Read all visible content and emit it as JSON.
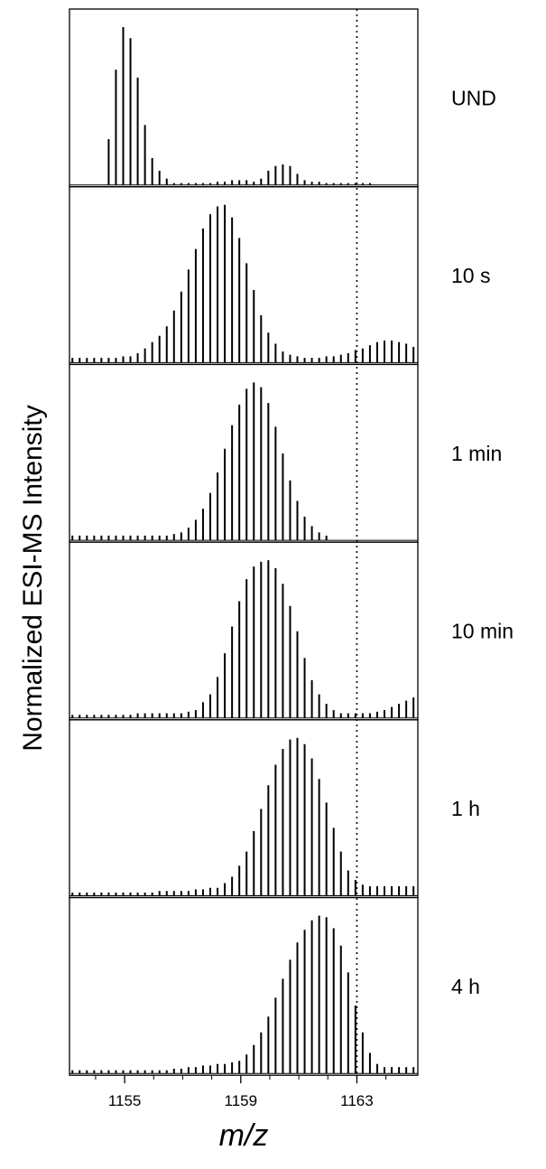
{
  "chart_data": {
    "type": "bar",
    "ylabel": "Normalized ESI-MS Intensity",
    "xlabel": "m/z",
    "xlim": [
      1153.1,
      1165.1
    ],
    "xticks": [
      1155,
      1159,
      1163
    ],
    "minor_xticks": [
      1154,
      1156,
      1157,
      1158,
      1160,
      1161,
      1162,
      1164
    ],
    "tick_labels": [
      "1155",
      "1159",
      "1163"
    ],
    "reference_line_x": 1163,
    "spacing": 0.25,
    "panels": [
      {
        "label": "UND",
        "start": 1154.45,
        "values": [
          0.29,
          0.73,
          1.0,
          0.93,
          0.68,
          0.38,
          0.17,
          0.09,
          0.04,
          0.0,
          0.0,
          0.0,
          0.0,
          0.01,
          0.01,
          0.02,
          0.02,
          0.03,
          0.03,
          0.03,
          0.02,
          0.04,
          0.09,
          0.12,
          0.13,
          0.12,
          0.07,
          0.03,
          0.02,
          0.02,
          0.01,
          0.01,
          0.01,
          0.0,
          0.0,
          0.0,
          0.0
        ]
      },
      {
        "label": "10 s",
        "start": 1153.2,
        "values": [
          0.03,
          0.03,
          0.03,
          0.03,
          0.03,
          0.03,
          0.03,
          0.04,
          0.04,
          0.06,
          0.09,
          0.13,
          0.17,
          0.23,
          0.33,
          0.45,
          0.59,
          0.72,
          0.85,
          0.94,
          0.99,
          1.0,
          0.92,
          0.79,
          0.63,
          0.46,
          0.3,
          0.19,
          0.12,
          0.07,
          0.05,
          0.04,
          0.03,
          0.03,
          0.03,
          0.04,
          0.04,
          0.05,
          0.06,
          0.08,
          0.09,
          0.11,
          0.13,
          0.14,
          0.14,
          0.13,
          0.12,
          0.1,
          0.08,
          0.06
        ]
      },
      {
        "label": "1 min",
        "start": 1153.2,
        "values": [
          0.03,
          0.03,
          0.03,
          0.03,
          0.03,
          0.03,
          0.03,
          0.03,
          0.03,
          0.03,
          0.03,
          0.03,
          0.03,
          0.03,
          0.04,
          0.05,
          0.08,
          0.13,
          0.2,
          0.3,
          0.43,
          0.58,
          0.73,
          0.86,
          0.96,
          1.0,
          0.97,
          0.87,
          0.72,
          0.55,
          0.38,
          0.25,
          0.15,
          0.09,
          0.05,
          0.03
        ]
      },
      {
        "label": "10 min",
        "start": 1153.2,
        "values": [
          0.02,
          0.02,
          0.02,
          0.02,
          0.02,
          0.02,
          0.02,
          0.02,
          0.02,
          0.03,
          0.03,
          0.03,
          0.03,
          0.03,
          0.03,
          0.03,
          0.04,
          0.05,
          0.1,
          0.15,
          0.26,
          0.41,
          0.58,
          0.74,
          0.88,
          0.96,
          0.99,
          1.0,
          0.95,
          0.85,
          0.71,
          0.55,
          0.38,
          0.24,
          0.15,
          0.09,
          0.05,
          0.03,
          0.03,
          0.03,
          0.03,
          0.03,
          0.04,
          0.05,
          0.07,
          0.09,
          0.11,
          0.13,
          0.14
        ]
      },
      {
        "label": "1 h",
        "start": 1153.2,
        "values": [
          0.02,
          0.02,
          0.02,
          0.02,
          0.02,
          0.02,
          0.02,
          0.02,
          0.02,
          0.02,
          0.02,
          0.02,
          0.03,
          0.03,
          0.03,
          0.03,
          0.03,
          0.04,
          0.04,
          0.05,
          0.05,
          0.08,
          0.12,
          0.19,
          0.28,
          0.41,
          0.55,
          0.7,
          0.83,
          0.93,
          0.99,
          1.0,
          0.96,
          0.87,
          0.74,
          0.59,
          0.43,
          0.28,
          0.16,
          0.1,
          0.07,
          0.06,
          0.06,
          0.06,
          0.06,
          0.06,
          0.06,
          0.06,
          0.07
        ]
      },
      {
        "label": "4 h",
        "start": 1153.2,
        "values": [
          0.02,
          0.02,
          0.02,
          0.02,
          0.02,
          0.02,
          0.02,
          0.02,
          0.02,
          0.02,
          0.02,
          0.02,
          0.02,
          0.02,
          0.03,
          0.03,
          0.04,
          0.04,
          0.05,
          0.05,
          0.06,
          0.06,
          0.07,
          0.08,
          0.12,
          0.18,
          0.26,
          0.36,
          0.48,
          0.6,
          0.72,
          0.83,
          0.91,
          0.97,
          1.0,
          0.99,
          0.92,
          0.81,
          0.64,
          0.43,
          0.26,
          0.13,
          0.06,
          0.04,
          0.04,
          0.04,
          0.04,
          0.04,
          0.04
        ]
      }
    ]
  }
}
